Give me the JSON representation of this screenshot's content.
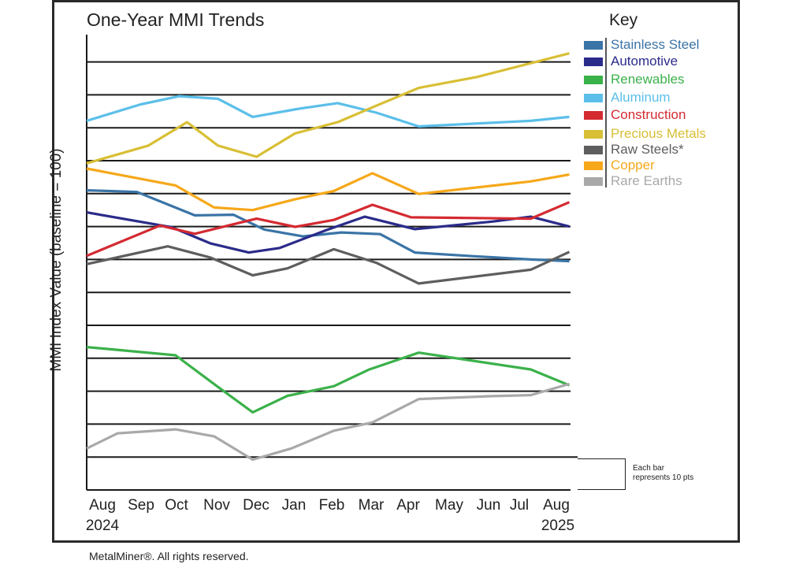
{
  "title": "One-Year MMI Trends",
  "ylabel": "MMI Index Value (baseline = 100)",
  "footer": "MetalMiner®. All rights reserved.",
  "key_title": "Key",
  "legend_note": [
    "Each bar",
    "represents 10 pts"
  ],
  "x_labels": [
    "Aug",
    "Sep",
    "Oct",
    "Nov",
    "Dec",
    "Jan",
    "Feb",
    "Mar",
    "Apr",
    "May",
    "Jun",
    "Jul",
    "Aug"
  ],
  "year_labels": [
    "2024",
    "2025"
  ],
  "chart_data": {
    "type": "line",
    "title": "One-Year MMI Trends",
    "ylabel": "MMI Index Value (baseline = 100)",
    "xlabel": "",
    "x_unit": "month index (0 = Aug 2024, 12 = Aug 2025)",
    "y_unit": "relative points (gridline spacing = 10 pts)",
    "ylim": [
      0,
      140
    ],
    "grid_step": 10,
    "grid": true,
    "legend_position": "right",
    "series": [
      {
        "name": "Stainless Steel",
        "color": "#3a74a6",
        "points": [
          [
            0,
            91
          ],
          [
            1.3,
            90.5
          ],
          [
            2.8,
            83.4
          ],
          [
            3.8,
            83.6
          ],
          [
            4.6,
            79.1
          ],
          [
            5.6,
            77
          ],
          [
            6.6,
            78.2
          ],
          [
            7.6,
            77.7
          ],
          [
            8.5,
            72.1
          ],
          [
            10,
            71
          ],
          [
            11.5,
            70
          ],
          [
            12.5,
            69.5
          ]
        ]
      },
      {
        "name": "Automotive",
        "color": "#2b2b8a",
        "points": [
          [
            0,
            84.3
          ],
          [
            2.2,
            79.8
          ],
          [
            3.2,
            74.9
          ],
          [
            4.2,
            72.1
          ],
          [
            5,
            73.5
          ],
          [
            6.2,
            78.9
          ],
          [
            7.2,
            83
          ],
          [
            8.5,
            79.2
          ],
          [
            10.5,
            81.5
          ],
          [
            11.5,
            83
          ],
          [
            12.5,
            80
          ]
        ]
      },
      {
        "name": "Renewables",
        "color": "#3bb14a",
        "points": [
          [
            0,
            43.4
          ],
          [
            2.3,
            40.9
          ],
          [
            3.4,
            31.3
          ],
          [
            4.3,
            23.6
          ],
          [
            5.2,
            28.6
          ],
          [
            6.4,
            31.5
          ],
          [
            7.3,
            36.5
          ],
          [
            8.6,
            41.7
          ],
          [
            9.8,
            39.6
          ],
          [
            11.5,
            36.6
          ],
          [
            12.5,
            31.8
          ]
        ]
      },
      {
        "name": "Aluminum",
        "color": "#5bbfe9",
        "points": [
          [
            0,
            112.1
          ],
          [
            1.4,
            117.1
          ],
          [
            2.4,
            119.6
          ],
          [
            3.4,
            118.8
          ],
          [
            4.3,
            113.3
          ],
          [
            5.5,
            115.8
          ],
          [
            6.5,
            117.5
          ],
          [
            7.5,
            114.6
          ],
          [
            8.6,
            110.4
          ],
          [
            11.5,
            112.1
          ],
          [
            12.5,
            113.3
          ]
        ]
      },
      {
        "name": "Construction",
        "color": "#d42a31",
        "points": [
          [
            0,
            71.1
          ],
          [
            1.9,
            80.3
          ],
          [
            2.8,
            77.8
          ],
          [
            3.8,
            80.7
          ],
          [
            4.4,
            82.4
          ],
          [
            5.4,
            79.9
          ],
          [
            6.4,
            82
          ],
          [
            7.4,
            86.6
          ],
          [
            8.4,
            82.8
          ],
          [
            11.5,
            82.4
          ],
          [
            12.5,
            87.4
          ]
        ]
      },
      {
        "name": "Precious Metals",
        "color": "#d8bf35",
        "points": [
          [
            0,
            99.2
          ],
          [
            1.6,
            104.6
          ],
          [
            2.6,
            111.7
          ],
          [
            3.4,
            104.6
          ],
          [
            4.4,
            101.2
          ],
          [
            5.4,
            108.3
          ],
          [
            6.5,
            111.7
          ],
          [
            7.5,
            116.7
          ],
          [
            8.6,
            122.1
          ],
          [
            10.1,
            125.4
          ],
          [
            12.5,
            132.6
          ]
        ]
      },
      {
        "name": "Raw Steels*",
        "color": "#5e5e5e",
        "points": [
          [
            0,
            68.6
          ],
          [
            2.1,
            74
          ],
          [
            3.2,
            70.6
          ],
          [
            4.3,
            65.2
          ],
          [
            5.2,
            67.3
          ],
          [
            6.4,
            73.1
          ],
          [
            7.5,
            69
          ],
          [
            8.6,
            62.7
          ],
          [
            11.5,
            66.9
          ],
          [
            12.5,
            72.3
          ]
        ]
      },
      {
        "name": "Copper",
        "color": "#f6a81a",
        "points": [
          [
            0,
            97.6
          ],
          [
            2.3,
            92.5
          ],
          [
            3.3,
            85.8
          ],
          [
            4.3,
            85
          ],
          [
            5.4,
            88.3
          ],
          [
            6.4,
            90.8
          ],
          [
            7.4,
            96.2
          ],
          [
            8.6,
            89.9
          ],
          [
            11.5,
            93.7
          ],
          [
            12.5,
            95.8
          ]
        ]
      },
      {
        "name": "Rare Earths",
        "color": "#a9a9a9",
        "points": [
          [
            0,
            12.6
          ],
          [
            0.8,
            17.2
          ],
          [
            2.3,
            18.4
          ],
          [
            3.3,
            16.3
          ],
          [
            4.3,
            9.2
          ],
          [
            5.3,
            12.6
          ],
          [
            6.4,
            18
          ],
          [
            7.4,
            20.5
          ],
          [
            8.6,
            27.6
          ],
          [
            10.5,
            28.5
          ],
          [
            11.5,
            28.8
          ],
          [
            12.5,
            32.2
          ]
        ]
      }
    ]
  }
}
